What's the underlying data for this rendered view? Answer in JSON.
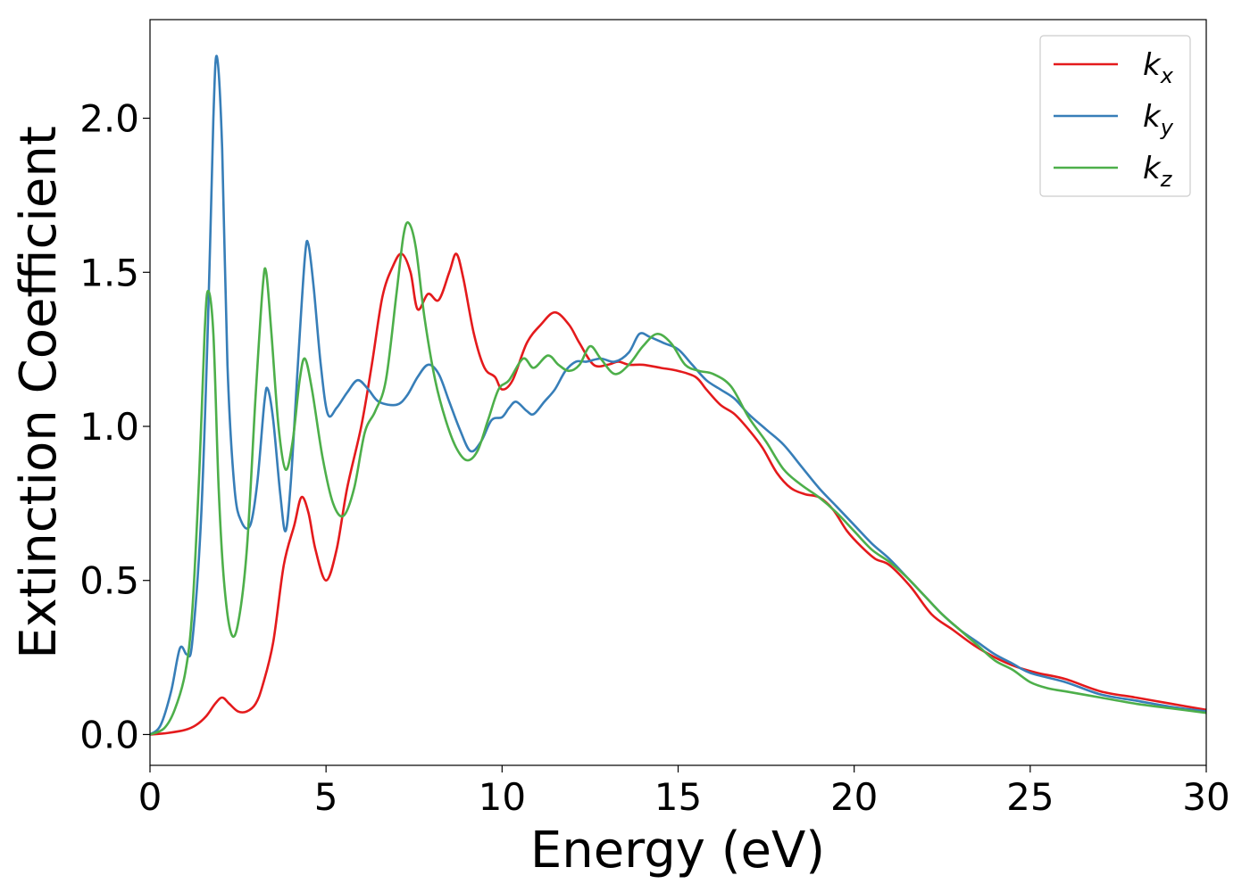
{
  "chart_data": {
    "type": "line",
    "title": "",
    "xlabel": "Energy (eV)",
    "ylabel": "Extinction Coefficient",
    "xlim": [
      0,
      30
    ],
    "ylim": [
      -0.1,
      2.32
    ],
    "xticks": [
      0,
      5,
      10,
      15,
      20,
      25,
      30
    ],
    "xtick_labels": [
      "0",
      "5",
      "10",
      "15",
      "20",
      "25",
      "30"
    ],
    "yticks": [
      0.0,
      0.5,
      1.0,
      1.5,
      2.0
    ],
    "ytick_labels": [
      "0.0",
      "0.5",
      "1.0",
      "1.5",
      "2.0"
    ],
    "grid": false,
    "legend_position": "top-right",
    "series": [
      {
        "name": "k_x",
        "legend_base": "k",
        "legend_sub": "x",
        "color": "#e41a1c",
        "points": [
          [
            0,
            0
          ],
          [
            0.5,
            0.005
          ],
          [
            1,
            0.015
          ],
          [
            1.3,
            0.03
          ],
          [
            1.6,
            0.06
          ],
          [
            1.85,
            0.1
          ],
          [
            2.05,
            0.12
          ],
          [
            2.25,
            0.1
          ],
          [
            2.5,
            0.075
          ],
          [
            2.75,
            0.075
          ],
          [
            3,
            0.1
          ],
          [
            3.2,
            0.16
          ],
          [
            3.5,
            0.3
          ],
          [
            3.8,
            0.55
          ],
          [
            4.1,
            0.68
          ],
          [
            4.3,
            0.77
          ],
          [
            4.5,
            0.72
          ],
          [
            4.7,
            0.6
          ],
          [
            5.0,
            0.5
          ],
          [
            5.3,
            0.6
          ],
          [
            5.6,
            0.8
          ],
          [
            6.0,
            1.0
          ],
          [
            6.3,
            1.2
          ],
          [
            6.6,
            1.42
          ],
          [
            6.9,
            1.52
          ],
          [
            7.15,
            1.56
          ],
          [
            7.4,
            1.5
          ],
          [
            7.6,
            1.38
          ],
          [
            7.9,
            1.43
          ],
          [
            8.2,
            1.41
          ],
          [
            8.5,
            1.5
          ],
          [
            8.7,
            1.56
          ],
          [
            8.9,
            1.48
          ],
          [
            9.2,
            1.3
          ],
          [
            9.5,
            1.19
          ],
          [
            9.8,
            1.16
          ],
          [
            10.0,
            1.12
          ],
          [
            10.3,
            1.15
          ],
          [
            10.7,
            1.27
          ],
          [
            11.1,
            1.33
          ],
          [
            11.5,
            1.37
          ],
          [
            11.9,
            1.33
          ],
          [
            12.2,
            1.27
          ],
          [
            12.6,
            1.2
          ],
          [
            13.0,
            1.2
          ],
          [
            13.3,
            1.21
          ],
          [
            13.6,
            1.2
          ],
          [
            14.0,
            1.2
          ],
          [
            14.5,
            1.19
          ],
          [
            15.0,
            1.18
          ],
          [
            15.5,
            1.16
          ],
          [
            15.8,
            1.12
          ],
          [
            16.2,
            1.07
          ],
          [
            16.6,
            1.04
          ],
          [
            17.0,
            0.99
          ],
          [
            17.4,
            0.93
          ],
          [
            17.8,
            0.85
          ],
          [
            18.2,
            0.8
          ],
          [
            18.6,
            0.78
          ],
          [
            19.0,
            0.77
          ],
          [
            19.4,
            0.73
          ],
          [
            19.8,
            0.66
          ],
          [
            20.2,
            0.61
          ],
          [
            20.6,
            0.57
          ],
          [
            21.0,
            0.55
          ],
          [
            21.6,
            0.48
          ],
          [
            22.2,
            0.39
          ],
          [
            22.8,
            0.34
          ],
          [
            23.4,
            0.29
          ],
          [
            24.0,
            0.25
          ],
          [
            24.6,
            0.22
          ],
          [
            25.2,
            0.2
          ],
          [
            26.0,
            0.18
          ],
          [
            27.0,
            0.14
          ],
          [
            28.0,
            0.12
          ],
          [
            29.0,
            0.1
          ],
          [
            30.0,
            0.08
          ]
        ]
      },
      {
        "name": "k_y",
        "legend_base": "k",
        "legend_sub": "y",
        "color": "#377eb8",
        "points": [
          [
            0,
            0
          ],
          [
            0.3,
            0.03
          ],
          [
            0.6,
            0.14
          ],
          [
            0.85,
            0.28
          ],
          [
            1.05,
            0.26
          ],
          [
            1.2,
            0.3
          ],
          [
            1.45,
            0.7
          ],
          [
            1.65,
            1.35
          ],
          [
            1.8,
            2.0
          ],
          [
            1.9,
            2.2
          ],
          [
            2.05,
            1.9
          ],
          [
            2.2,
            1.2
          ],
          [
            2.4,
            0.8
          ],
          [
            2.6,
            0.69
          ],
          [
            2.85,
            0.68
          ],
          [
            3.05,
            0.82
          ],
          [
            3.25,
            1.08
          ],
          [
            3.35,
            1.12
          ],
          [
            3.5,
            1.02
          ],
          [
            3.7,
            0.78
          ],
          [
            3.85,
            0.66
          ],
          [
            4.0,
            0.82
          ],
          [
            4.2,
            1.2
          ],
          [
            4.4,
            1.55
          ],
          [
            4.5,
            1.59
          ],
          [
            4.65,
            1.45
          ],
          [
            4.85,
            1.2
          ],
          [
            5.05,
            1.04
          ],
          [
            5.3,
            1.06
          ],
          [
            5.6,
            1.11
          ],
          [
            5.9,
            1.15
          ],
          [
            6.2,
            1.12
          ],
          [
            6.5,
            1.08
          ],
          [
            7.0,
            1.07
          ],
          [
            7.3,
            1.1
          ],
          [
            7.6,
            1.16
          ],
          [
            7.9,
            1.2
          ],
          [
            8.2,
            1.17
          ],
          [
            8.5,
            1.08
          ],
          [
            8.8,
            0.99
          ],
          [
            9.1,
            0.92
          ],
          [
            9.4,
            0.95
          ],
          [
            9.7,
            1.02
          ],
          [
            10.0,
            1.03
          ],
          [
            10.2,
            1.06
          ],
          [
            10.4,
            1.08
          ],
          [
            10.7,
            1.05
          ],
          [
            10.9,
            1.04
          ],
          [
            11.2,
            1.08
          ],
          [
            11.5,
            1.12
          ],
          [
            11.8,
            1.18
          ],
          [
            12.1,
            1.21
          ],
          [
            12.4,
            1.21
          ],
          [
            12.8,
            1.22
          ],
          [
            13.2,
            1.21
          ],
          [
            13.6,
            1.24
          ],
          [
            13.9,
            1.3
          ],
          [
            14.2,
            1.29
          ],
          [
            14.6,
            1.27
          ],
          [
            15.0,
            1.25
          ],
          [
            15.4,
            1.2
          ],
          [
            15.8,
            1.15
          ],
          [
            16.2,
            1.12
          ],
          [
            16.6,
            1.09
          ],
          [
            17.0,
            1.04
          ],
          [
            17.5,
            0.99
          ],
          [
            18.0,
            0.94
          ],
          [
            18.5,
            0.87
          ],
          [
            19.0,
            0.8
          ],
          [
            19.5,
            0.74
          ],
          [
            20.0,
            0.68
          ],
          [
            20.5,
            0.62
          ],
          [
            21.0,
            0.57
          ],
          [
            21.5,
            0.51
          ],
          [
            22.0,
            0.45
          ],
          [
            22.5,
            0.39
          ],
          [
            23.0,
            0.34
          ],
          [
            23.5,
            0.3
          ],
          [
            24.0,
            0.26
          ],
          [
            24.5,
            0.23
          ],
          [
            25.0,
            0.2
          ],
          [
            26.0,
            0.17
          ],
          [
            27.0,
            0.13
          ],
          [
            28.0,
            0.11
          ],
          [
            29.0,
            0.09
          ],
          [
            30.0,
            0.075
          ]
        ]
      },
      {
        "name": "k_z",
        "legend_base": "k",
        "legend_sub": "z",
        "color": "#4daf4a",
        "points": [
          [
            0,
            0
          ],
          [
            0.4,
            0.02
          ],
          [
            0.7,
            0.08
          ],
          [
            1.0,
            0.2
          ],
          [
            1.2,
            0.4
          ],
          [
            1.4,
            0.85
          ],
          [
            1.55,
            1.3
          ],
          [
            1.65,
            1.44
          ],
          [
            1.8,
            1.3
          ],
          [
            1.95,
            0.8
          ],
          [
            2.1,
            0.5
          ],
          [
            2.3,
            0.33
          ],
          [
            2.5,
            0.36
          ],
          [
            2.75,
            0.6
          ],
          [
            3.0,
            1.1
          ],
          [
            3.2,
            1.45
          ],
          [
            3.3,
            1.5
          ],
          [
            3.45,
            1.3
          ],
          [
            3.65,
            1.0
          ],
          [
            3.85,
            0.86
          ],
          [
            4.05,
            0.95
          ],
          [
            4.25,
            1.15
          ],
          [
            4.4,
            1.22
          ],
          [
            4.6,
            1.12
          ],
          [
            4.9,
            0.9
          ],
          [
            5.2,
            0.75
          ],
          [
            5.5,
            0.71
          ],
          [
            5.8,
            0.8
          ],
          [
            6.1,
            0.98
          ],
          [
            6.4,
            1.05
          ],
          [
            6.7,
            1.15
          ],
          [
            7.0,
            1.43
          ],
          [
            7.2,
            1.62
          ],
          [
            7.35,
            1.66
          ],
          [
            7.55,
            1.58
          ],
          [
            7.8,
            1.35
          ],
          [
            8.1,
            1.15
          ],
          [
            8.4,
            1.02
          ],
          [
            8.7,
            0.93
          ],
          [
            9.0,
            0.89
          ],
          [
            9.3,
            0.92
          ],
          [
            9.6,
            1.02
          ],
          [
            9.9,
            1.12
          ],
          [
            10.2,
            1.15
          ],
          [
            10.6,
            1.22
          ],
          [
            10.9,
            1.19
          ],
          [
            11.3,
            1.23
          ],
          [
            11.6,
            1.2
          ],
          [
            11.9,
            1.18
          ],
          [
            12.2,
            1.2
          ],
          [
            12.5,
            1.26
          ],
          [
            12.8,
            1.22
          ],
          [
            13.2,
            1.17
          ],
          [
            13.6,
            1.2
          ],
          [
            14.0,
            1.26
          ],
          [
            14.4,
            1.3
          ],
          [
            14.8,
            1.27
          ],
          [
            15.2,
            1.2
          ],
          [
            15.6,
            1.18
          ],
          [
            16.0,
            1.17
          ],
          [
            16.5,
            1.13
          ],
          [
            17.0,
            1.03
          ],
          [
            17.5,
            0.95
          ],
          [
            18.0,
            0.86
          ],
          [
            18.5,
            0.81
          ],
          [
            19.0,
            0.77
          ],
          [
            19.5,
            0.72
          ],
          [
            20.0,
            0.66
          ],
          [
            20.5,
            0.6
          ],
          [
            21.0,
            0.56
          ],
          [
            21.5,
            0.51
          ],
          [
            22.0,
            0.45
          ],
          [
            22.5,
            0.39
          ],
          [
            23.0,
            0.34
          ],
          [
            23.5,
            0.29
          ],
          [
            24.0,
            0.24
          ],
          [
            24.5,
            0.21
          ],
          [
            25.0,
            0.17
          ],
          [
            25.5,
            0.15
          ],
          [
            26.0,
            0.14
          ],
          [
            27.0,
            0.12
          ],
          [
            28.0,
            0.1
          ],
          [
            29.0,
            0.085
          ],
          [
            30.0,
            0.07
          ]
        ]
      }
    ]
  }
}
